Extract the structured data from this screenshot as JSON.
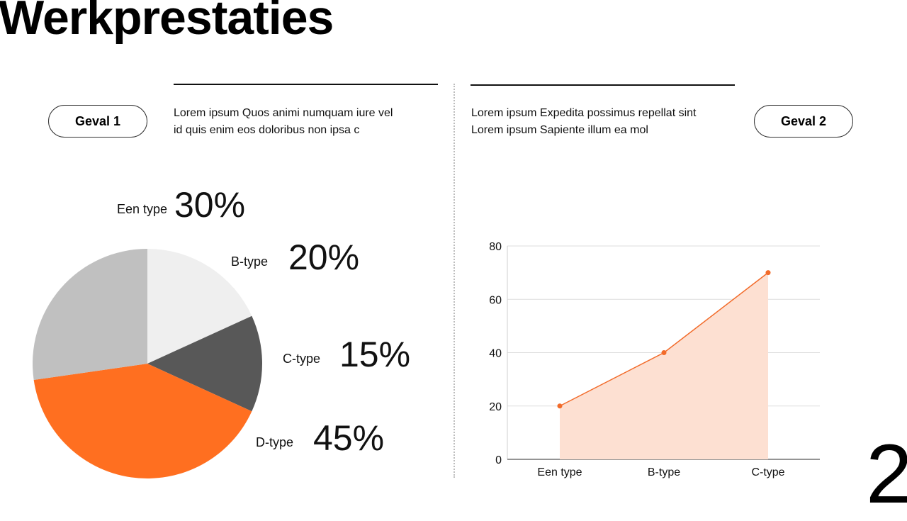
{
  "title": "Werkprestaties",
  "page_number": "2",
  "colors": {
    "accent": "#ff6f20",
    "area_fill": "#fde0d2",
    "dark": "#585858",
    "mid": "#c0c0c0",
    "light": "#efefef"
  },
  "case1": {
    "label": "Geval 1",
    "lines": [
      "Lorem ipsum Quos animi numquam iure vel",
      "id quis enim eos doloribus non ipsa c"
    ]
  },
  "case2": {
    "label": "Geval 2",
    "lines": [
      "Lorem ipsum Expedita possimus repellat sint",
      "Lorem ipsum Sapiente illum ea mol"
    ]
  },
  "pie_labels": [
    {
      "name": "Een type",
      "value": "30%"
    },
    {
      "name": "B-type",
      "value": "20%"
    },
    {
      "name": "C-type",
      "value": "15%"
    },
    {
      "name": "D-type",
      "value": "45%"
    }
  ],
  "chart_data": [
    {
      "type": "pie",
      "title": "",
      "categories": [
        "Een type",
        "B-type",
        "C-type",
        "D-type"
      ],
      "values": [
        30,
        20,
        15,
        45
      ],
      "colors": {
        "Een type": "#c0c0c0",
        "B-type": "#efefef",
        "C-type": "#585858",
        "D-type": "#ff6f20"
      },
      "legend": "labels beside chart"
    },
    {
      "type": "area",
      "title": "",
      "categories": [
        "Een type",
        "B-type",
        "C-type"
      ],
      "series": [
        {
          "name": "",
          "values": [
            20,
            40,
            70
          ]
        }
      ],
      "xlabel": "",
      "ylabel": "",
      "ylim": [
        0,
        80
      ],
      "yticks": [
        0,
        20,
        40,
        60,
        80
      ],
      "grid": true,
      "line_color": "#f26b2a",
      "fill_color": "#fde0d2"
    }
  ]
}
